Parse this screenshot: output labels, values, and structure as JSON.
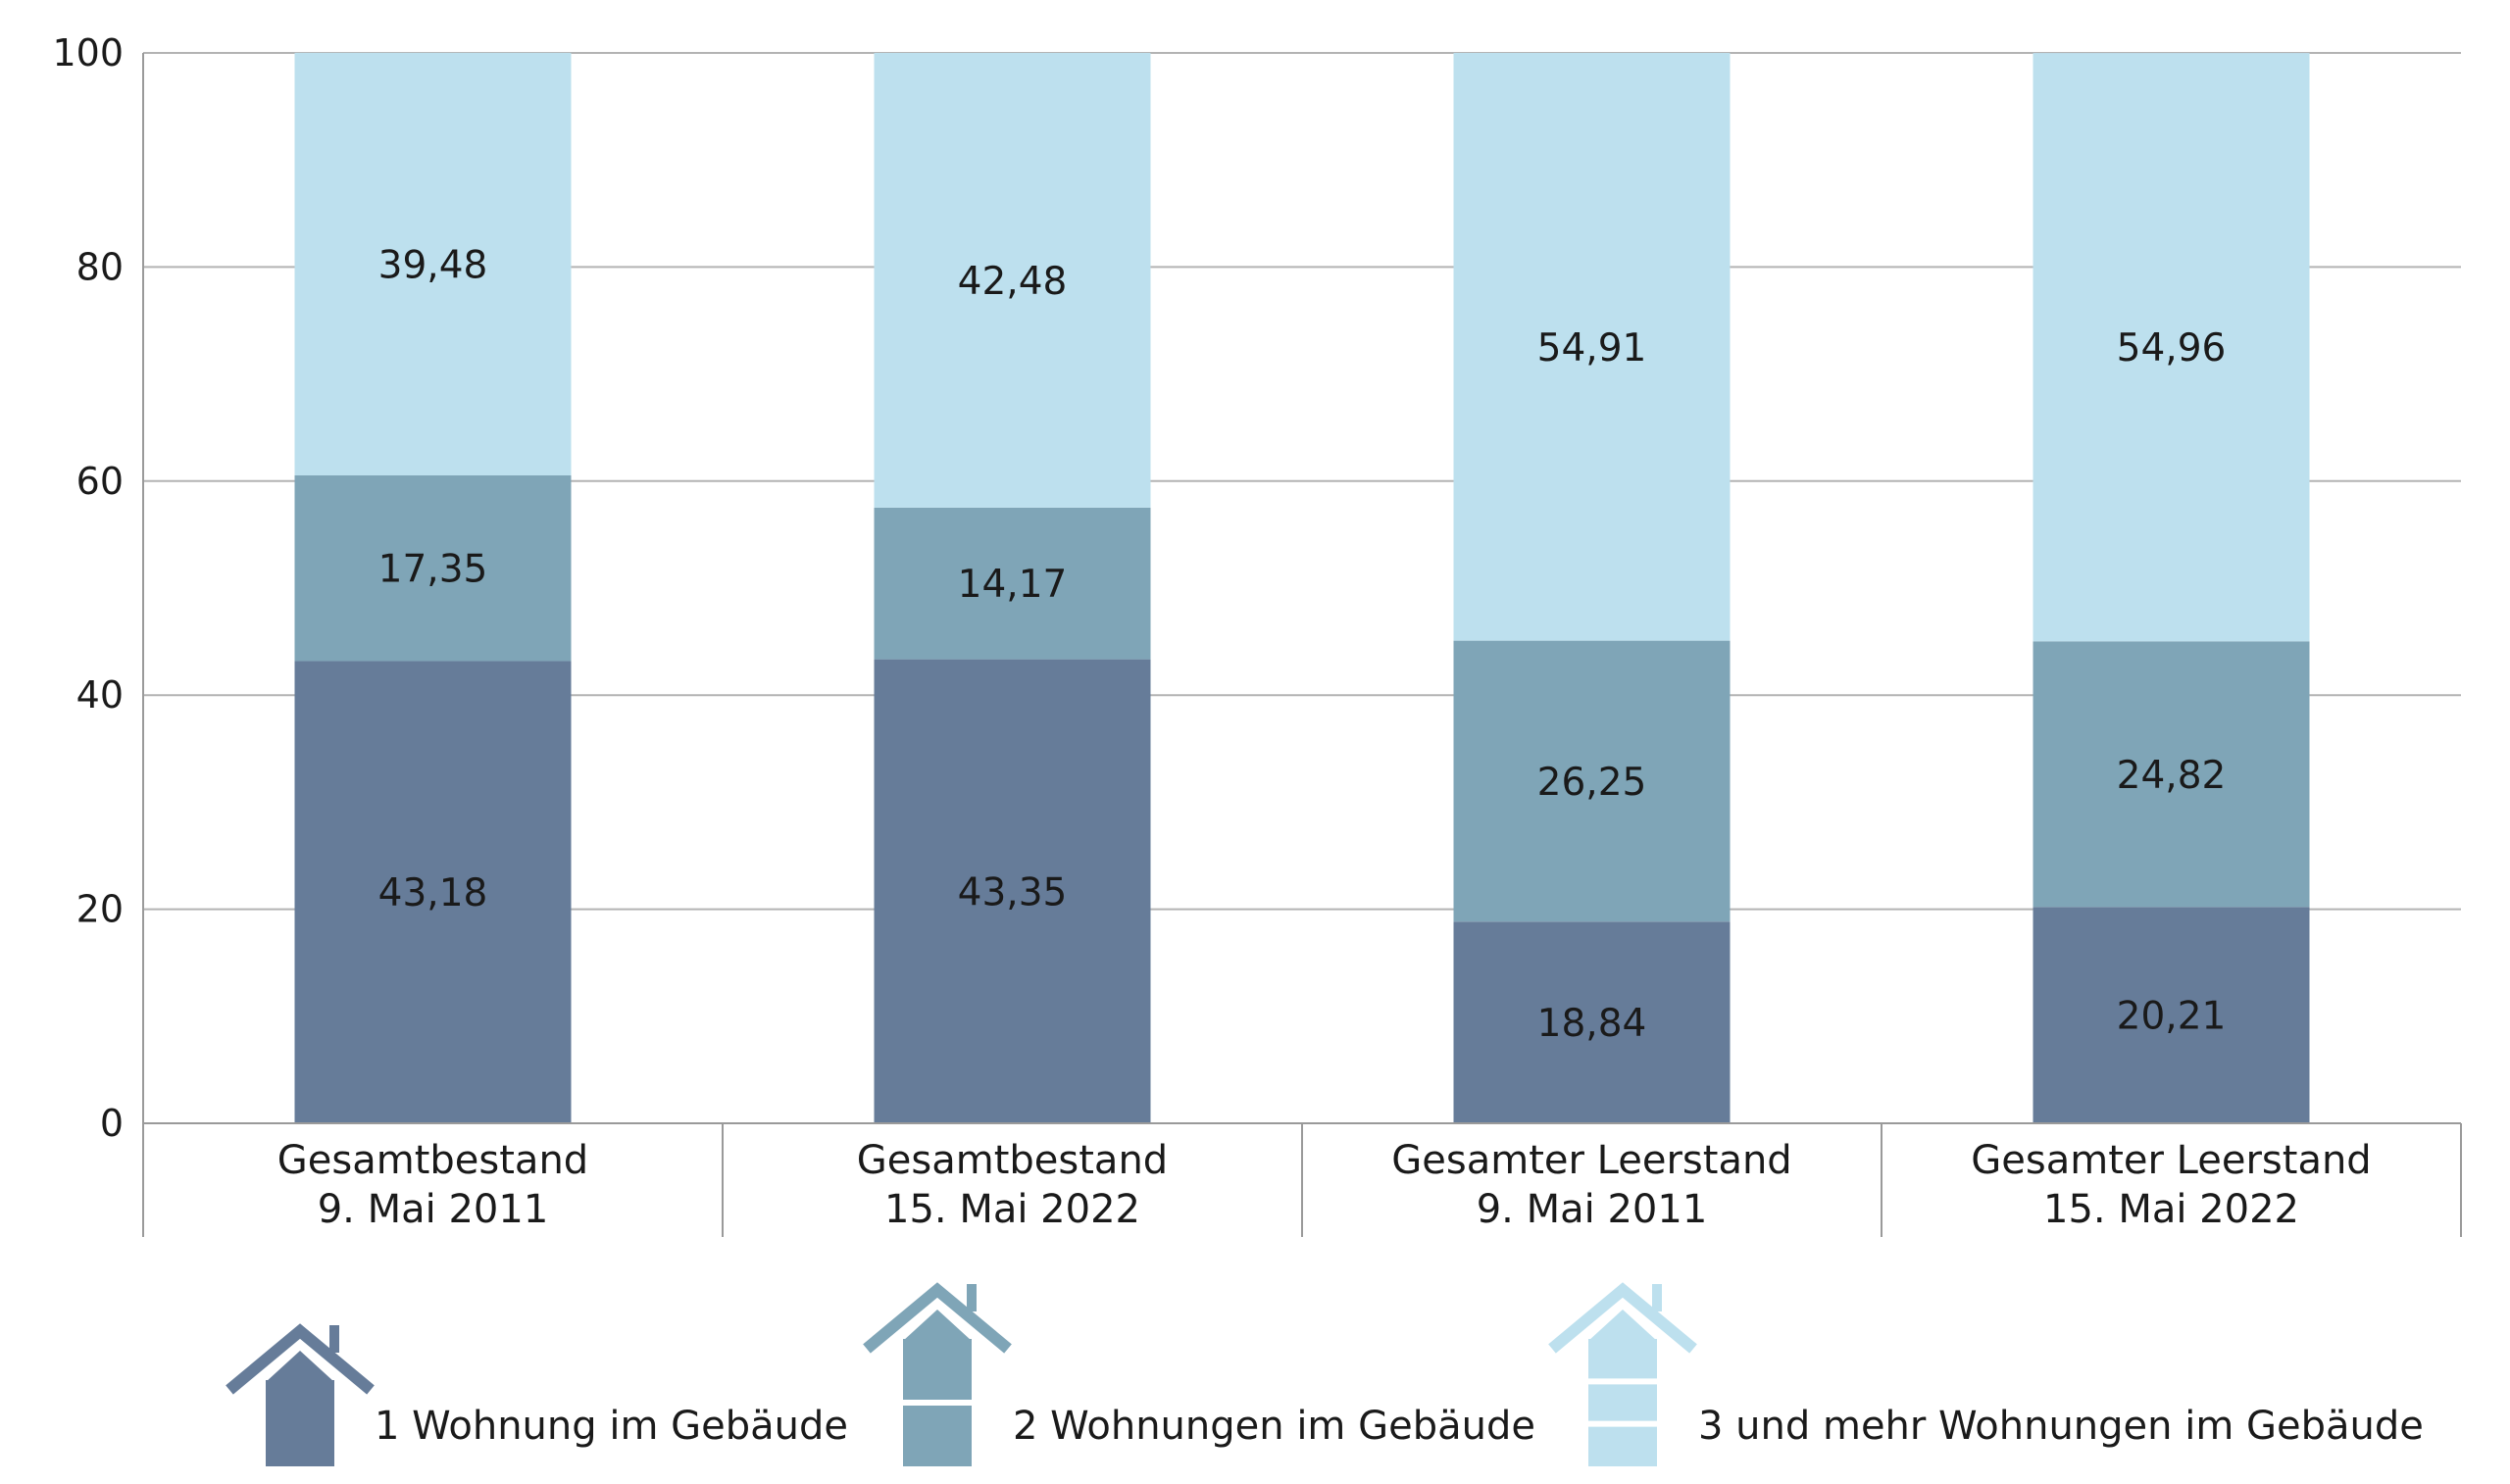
{
  "chart_data": {
    "type": "bar",
    "stacked": true,
    "ylim": [
      0,
      100
    ],
    "yticks": [
      "0",
      "20",
      "40",
      "60",
      "80",
      "100"
    ],
    "grid": true,
    "categories": [
      [
        "Gesamtbestand",
        "9. Mai 2011"
      ],
      [
        "Gesamtbestand",
        "15. Mai 2022"
      ],
      [
        "Gesamter Leerstand",
        "9. Mai 2011"
      ],
      [
        "Gesamter Leerstand",
        "15. Mai 2022"
      ]
    ],
    "series": [
      {
        "name": "1 Wohnung im Gebäude",
        "color": "#667c99",
        "values": [
          43.18,
          43.35,
          18.84,
          20.21
        ],
        "labels": [
          "43,18",
          "43,35",
          "18,84",
          "20,21"
        ]
      },
      {
        "name": "2 Wohnungen im Gebäude",
        "color": "#7fa5b7",
        "values": [
          17.35,
          14.17,
          26.25,
          24.82
        ],
        "labels": [
          "17,35",
          "14,17",
          "26,25",
          "24,82"
        ]
      },
      {
        "name": "3 und mehr Wohnungen im Gebäude",
        "color": "#bde0ee",
        "values": [
          39.48,
          42.48,
          54.91,
          54.96
        ],
        "labels": [
          "39,48",
          "42,48",
          "54,91",
          "54,96"
        ]
      }
    ],
    "legend_position": "bottom"
  }
}
